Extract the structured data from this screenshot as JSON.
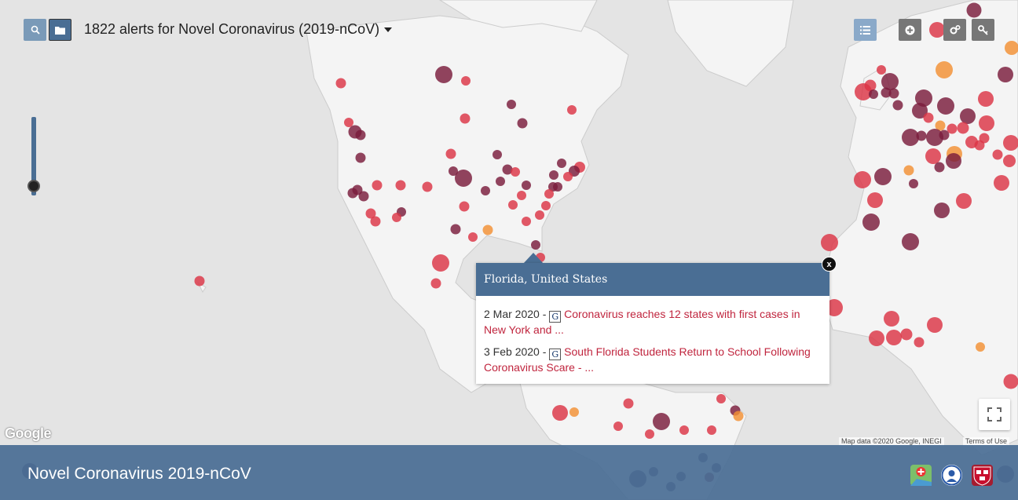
{
  "toolbar": {
    "search_icon": "search-icon",
    "folder_icon": "folder-icon",
    "title": "1822 alerts for Novel Coronavirus (2019-nCoV)",
    "list_icon": "list-icon",
    "add_icon": "plus-circle-icon",
    "settings_icon": "gears-icon",
    "key_icon": "key-icon"
  },
  "popup": {
    "location": "Florida, United States",
    "close_label": "x",
    "alerts": [
      {
        "date": "2 Mar 2020 -",
        "source_icon": "G",
        "text": "Coronavirus reaches 12 states with first cases in New York and ..."
      },
      {
        "date": "3 Feb 2020 -",
        "source_icon": "G",
        "text": "South Florida Students Return to School Following Coronavirus Scare - ..."
      }
    ]
  },
  "map": {
    "google_logo": "Google",
    "attribution": "Map data ©2020 Google, INEGI",
    "terms": "Terms of Use",
    "colors": {
      "recent": "#dc3545",
      "older": "#7a1c3c",
      "oldest": "#3a2b5e",
      "orange": "#f39033"
    }
  },
  "footer": {
    "title": "Novel Coronavirus 2019-nCoV"
  }
}
